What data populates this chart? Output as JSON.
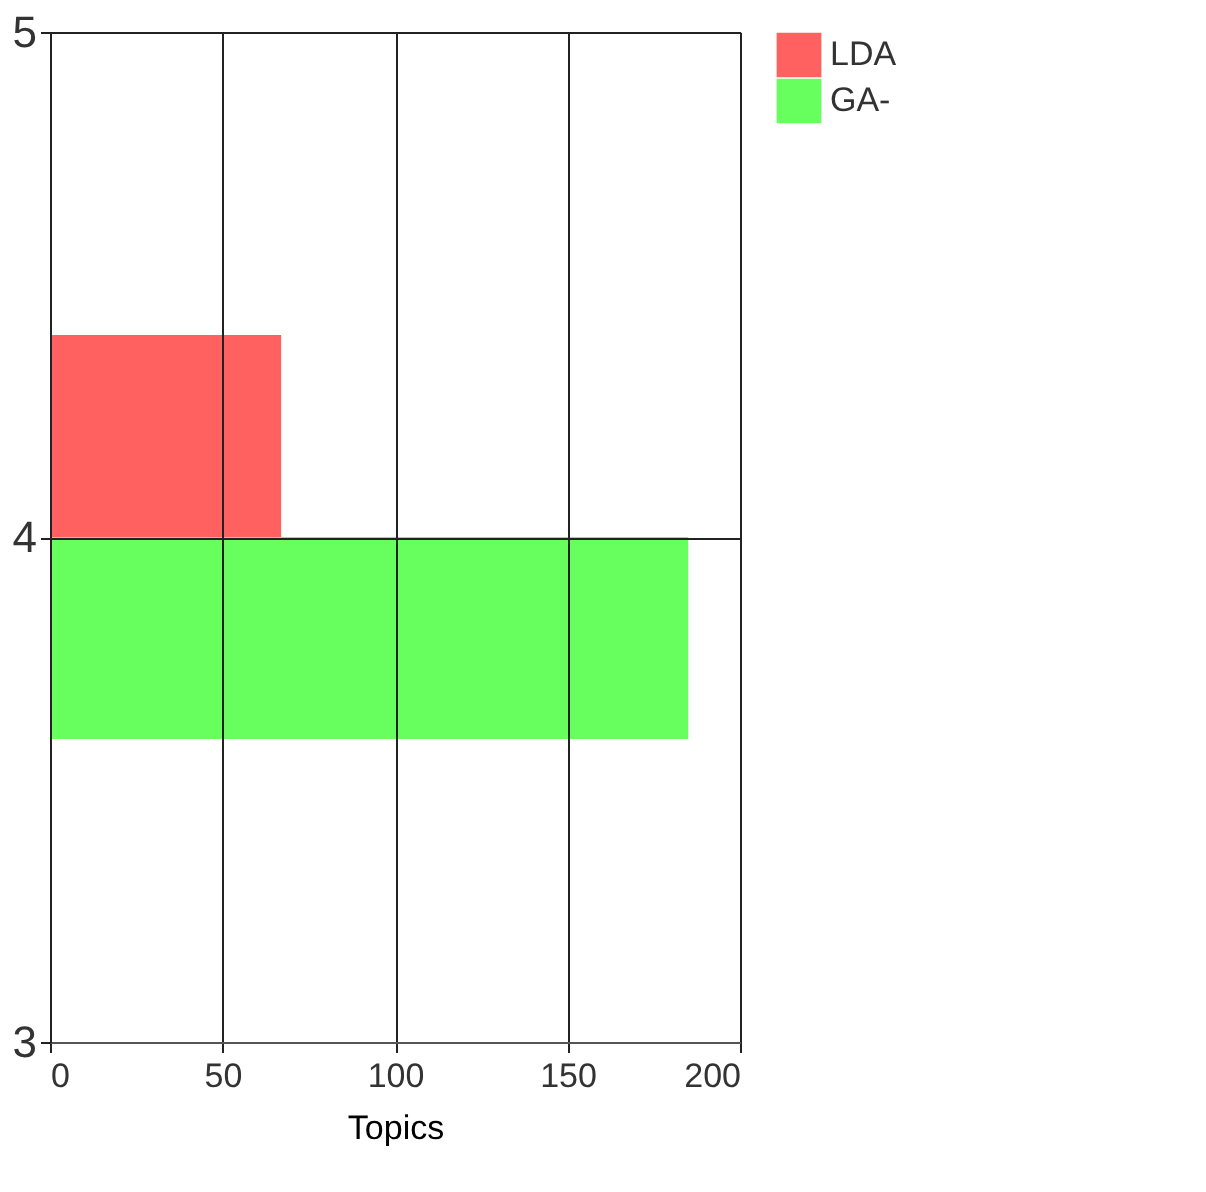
{
  "chart_data": {
    "type": "bar",
    "orientation": "horizontal",
    "xlabel": "Topics",
    "series": [
      {
        "name": "LDA",
        "color": "#ff6060",
        "x": [
          4.2
        ],
        "values": [
          67
        ]
      },
      {
        "name": "GA-",
        "color": "#66ff5e",
        "x": [
          3.8
        ],
        "values": [
          185
        ]
      }
    ],
    "xlim": [
      0,
      200
    ],
    "xticks": [
      0,
      50,
      100,
      150,
      200
    ],
    "ylim": [
      3,
      5
    ],
    "yticks": [
      3,
      4,
      5
    ],
    "grid": true,
    "legend": "top right"
  }
}
